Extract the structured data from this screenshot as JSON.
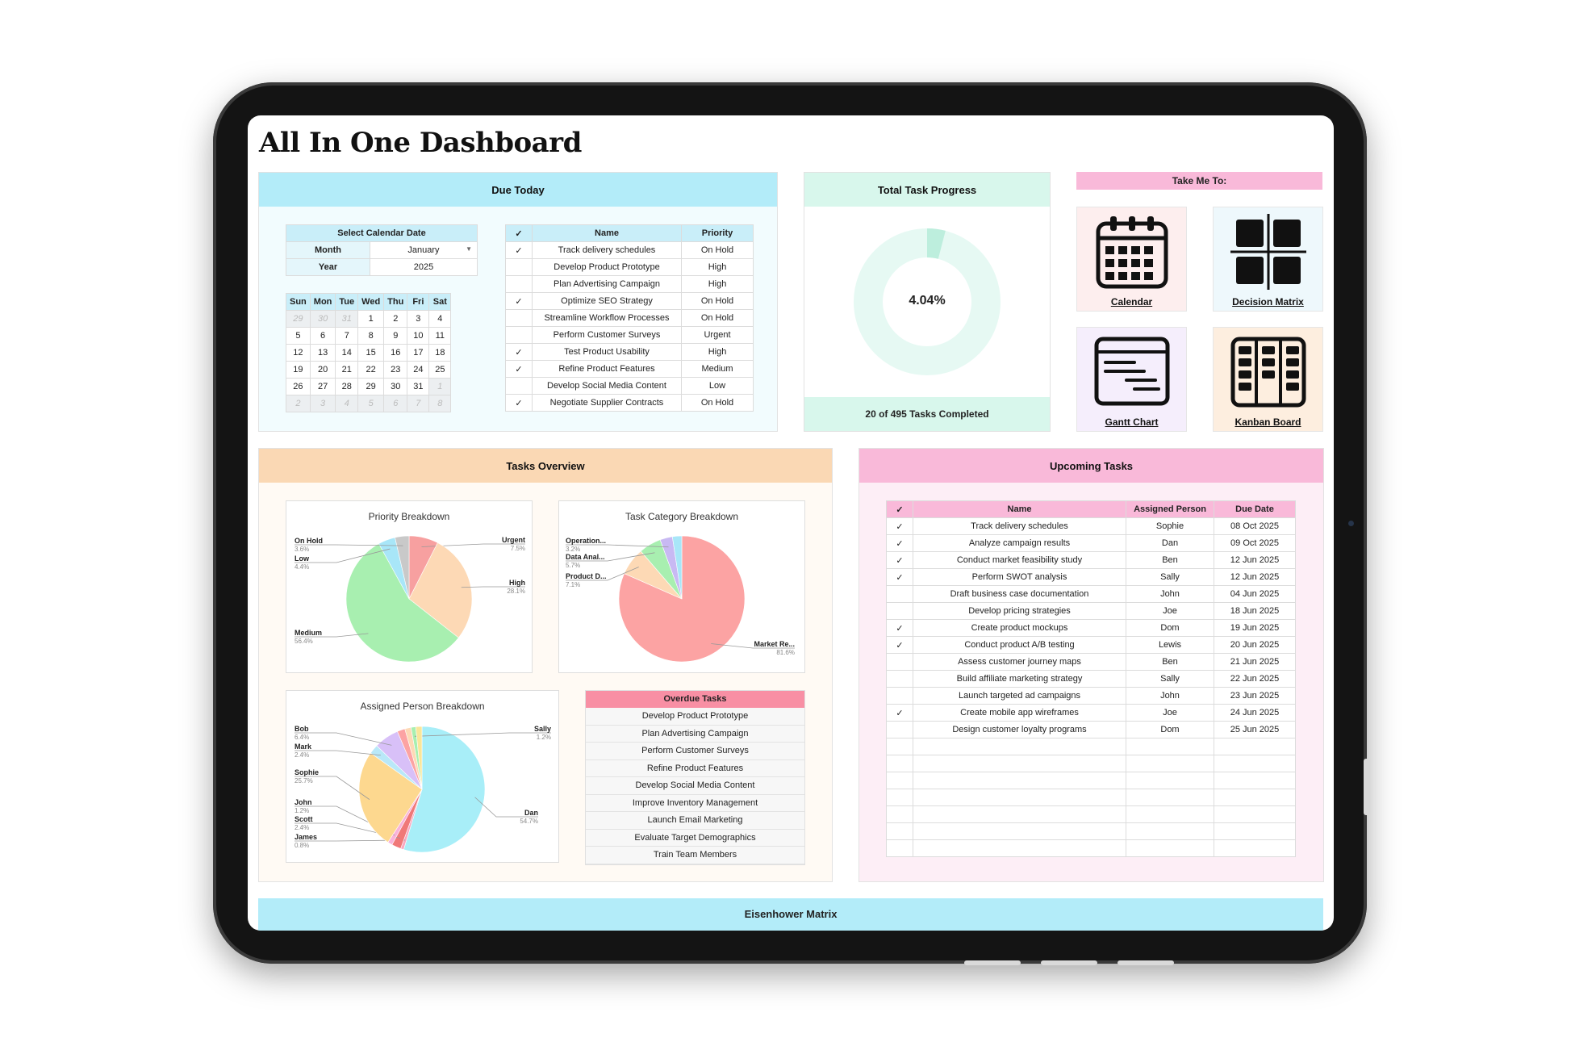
{
  "title": "All In One Dashboard",
  "colors": {
    "due_today_head": "#b3ecf9",
    "progress_head": "#d8f7ec",
    "takeme_head": "#f9b9d9",
    "tasks_overview_head": "#fad8b4",
    "upcoming_head": "#f9b9d9",
    "overdue_head": "#f88fa4",
    "eisenhower_head": "#b3ecf9"
  },
  "due_today": {
    "header": "Due Today",
    "select": {
      "title": "Select Calendar Date",
      "month_label": "Month",
      "month_value": "January",
      "year_label": "Year",
      "year_value": "2025"
    },
    "calendar": {
      "days": [
        "Sun",
        "Mon",
        "Tue",
        "Wed",
        "Thu",
        "Fri",
        "Sat"
      ],
      "weeks": [
        [
          {
            "d": "29",
            "m": true
          },
          {
            "d": "30",
            "m": true
          },
          {
            "d": "31",
            "m": true
          },
          {
            "d": "1"
          },
          {
            "d": "2"
          },
          {
            "d": "3"
          },
          {
            "d": "4"
          }
        ],
        [
          {
            "d": "5"
          },
          {
            "d": "6"
          },
          {
            "d": "7"
          },
          {
            "d": "8"
          },
          {
            "d": "9"
          },
          {
            "d": "10"
          },
          {
            "d": "11"
          }
        ],
        [
          {
            "d": "12"
          },
          {
            "d": "13"
          },
          {
            "d": "14"
          },
          {
            "d": "15"
          },
          {
            "d": "16"
          },
          {
            "d": "17"
          },
          {
            "d": "18"
          }
        ],
        [
          {
            "d": "19"
          },
          {
            "d": "20"
          },
          {
            "d": "21"
          },
          {
            "d": "22"
          },
          {
            "d": "23"
          },
          {
            "d": "24"
          },
          {
            "d": "25"
          }
        ],
        [
          {
            "d": "26"
          },
          {
            "d": "27"
          },
          {
            "d": "28"
          },
          {
            "d": "29"
          },
          {
            "d": "30"
          },
          {
            "d": "31"
          },
          {
            "d": "1",
            "m": true
          }
        ],
        [
          {
            "d": "2",
            "m": true
          },
          {
            "d": "3",
            "m": true
          },
          {
            "d": "4",
            "m": true
          },
          {
            "d": "5",
            "m": true
          },
          {
            "d": "6",
            "m": true
          },
          {
            "d": "7",
            "m": true
          },
          {
            "d": "8",
            "m": true
          }
        ]
      ]
    },
    "table": {
      "headers": [
        "✓",
        "Name",
        "Priority"
      ],
      "rows": [
        {
          "check": "✓",
          "name": "Track delivery schedules",
          "priority": "On Hold"
        },
        {
          "check": "",
          "name": "Develop Product Prototype",
          "priority": "High"
        },
        {
          "check": "",
          "name": "Plan Advertising Campaign",
          "priority": "High"
        },
        {
          "check": "✓",
          "name": "Optimize SEO Strategy",
          "priority": "On Hold"
        },
        {
          "check": "",
          "name": "Streamline Workflow Processes",
          "priority": "On Hold"
        },
        {
          "check": "",
          "name": "Perform Customer Surveys",
          "priority": "Urgent"
        },
        {
          "check": "✓",
          "name": "Test Product Usability",
          "priority": "High"
        },
        {
          "check": "✓",
          "name": "Refine Product Features",
          "priority": "Medium"
        },
        {
          "check": "",
          "name": "Develop Social Media Content",
          "priority": "Low"
        },
        {
          "check": "✓",
          "name": "Negotiate Supplier Contracts",
          "priority": "On Hold"
        }
      ]
    }
  },
  "progress": {
    "header": "Total Task Progress",
    "percent_label": "4.04%",
    "percent": 4.04,
    "footer": "20 of 495 Tasks Completed"
  },
  "take_me": {
    "header": "Take Me To:",
    "cards": [
      {
        "label": "Calendar",
        "icon": "calendar-icon",
        "bg": "#fdeeee"
      },
      {
        "label": "Decision Matrix",
        "icon": "grid-icon",
        "bg": "#eef8fc"
      },
      {
        "label": "Gantt Chart",
        "icon": "gantt-icon",
        "bg": "#f5eefc"
      },
      {
        "label": "Kanban Board",
        "icon": "kanban-icon",
        "bg": "#fdeedf"
      }
    ]
  },
  "tasks_overview": {
    "header": "Tasks Overview",
    "overdue": {
      "header": "Overdue Tasks",
      "items": [
        "Develop Product Prototype",
        "Plan Advertising Campaign",
        "Perform Customer Surveys",
        "Refine Product Features",
        "Develop Social Media Content",
        "Improve Inventory Management",
        "Launch Email Marketing",
        "Evaluate Target Demographics",
        "Train Team Members"
      ]
    }
  },
  "chart_data": [
    {
      "type": "pie",
      "title": "Priority Breakdown",
      "slices": [
        {
          "label": "Urgent",
          "value": 7.5,
          "value_label": "7.5%",
          "color": "#f7a0a0"
        },
        {
          "label": "High",
          "value": 28.1,
          "value_label": "28.1%",
          "color": "#fdd9b5"
        },
        {
          "label": "Medium",
          "value": 56.4,
          "value_label": "56.4%",
          "color": "#a8efb0"
        },
        {
          "label": "Low",
          "value": 4.4,
          "value_label": "4.4%",
          "color": "#a8e6f8"
        },
        {
          "label": "On Hold",
          "value": 3.6,
          "value_label": "3.6%",
          "color": "#c9c9c9"
        }
      ]
    },
    {
      "type": "pie",
      "title": "Task Category Breakdown",
      "slices": [
        {
          "label": "Market Re...",
          "value": 81.6,
          "value_label": "81.6%",
          "color": "#fca3a3"
        },
        {
          "label": "Product D...",
          "value": 7.1,
          "value_label": "7.1%",
          "color": "#fdd9b5"
        },
        {
          "label": "Data Anal...",
          "value": 5.7,
          "value_label": "5.7%",
          "color": "#a8efb0"
        },
        {
          "label": "Operation...",
          "value": 3.2,
          "value_label": "3.2%",
          "color": "#c8b9f3"
        },
        {
          "label": "",
          "value": 2.4,
          "value_label": "",
          "color": "#a8e6f8"
        }
      ]
    },
    {
      "type": "pie",
      "title": "Assigned Person Breakdown",
      "slices": [
        {
          "label": "Dan",
          "value": 54.7,
          "value_label": "54.7%",
          "color": "#a8eef8"
        },
        {
          "label": "James",
          "value": 0.8,
          "value_label": "0.8%",
          "color": "#f8a8c0"
        },
        {
          "label": "Scott",
          "value": 2.4,
          "value_label": "2.4%",
          "color": "#f07878"
        },
        {
          "label": "John",
          "value": 1.2,
          "value_label": "1.2%",
          "color": "#f9b3d9"
        },
        {
          "label": "Sophie",
          "value": 25.7,
          "value_label": "25.7%",
          "color": "#fdd88f"
        },
        {
          "label": "Mark",
          "value": 2.4,
          "value_label": "2.4%",
          "color": "#b9e8f8"
        },
        {
          "label": "Bob",
          "value": 6.4,
          "value_label": "6.4%",
          "color": "#d8c0f8"
        },
        {
          "label": "",
          "value": 2.0,
          "value_label": "",
          "color": "#fca3a3"
        },
        {
          "label": "",
          "value": 1.6,
          "value_label": "",
          "color": "#fdd9b5"
        },
        {
          "label": "Sally",
          "value": 1.2,
          "value_label": "1.2%",
          "color": "#a8efb0"
        },
        {
          "label": "",
          "value": 1.6,
          "value_label": "",
          "color": "#f9e69a"
        }
      ]
    }
  ],
  "upcoming": {
    "header": "Upcoming Tasks",
    "headers": [
      "✓",
      "Name",
      "Assigned Person",
      "Due Date"
    ],
    "rows": [
      {
        "check": "✓",
        "name": "Track delivery schedules",
        "person": "Sophie",
        "date": "08 Oct 2025"
      },
      {
        "check": "✓",
        "name": "Analyze campaign results",
        "person": "Dan",
        "date": "09 Oct 2025"
      },
      {
        "check": "✓",
        "name": "Conduct market feasibility study",
        "person": "Ben",
        "date": "12 Jun 2025"
      },
      {
        "check": "✓",
        "name": "Perform SWOT analysis",
        "person": "Sally",
        "date": "12 Jun 2025"
      },
      {
        "check": "",
        "name": "Draft business case documentation",
        "person": "John",
        "date": "04 Jun 2025"
      },
      {
        "check": "",
        "name": "Develop pricing strategies",
        "person": "Joe",
        "date": "18 Jun 2025"
      },
      {
        "check": "✓",
        "name": "Create product mockups",
        "person": "Dom",
        "date": "19 Jun 2025"
      },
      {
        "check": "✓",
        "name": "Conduct product A/B testing",
        "person": "Lewis",
        "date": "20 Jun 2025"
      },
      {
        "check": "",
        "name": "Assess customer journey maps",
        "person": "Ben",
        "date": "21 Jun 2025"
      },
      {
        "check": "",
        "name": "Build affiliate marketing strategy",
        "person": "Sally",
        "date": "22 Jun 2025"
      },
      {
        "check": "",
        "name": "Launch targeted ad campaigns",
        "person": "John",
        "date": "23 Jun 2025"
      },
      {
        "check": "✓",
        "name": "Create mobile app wireframes",
        "person": "Joe",
        "date": "24 Jun 2025"
      },
      {
        "check": "",
        "name": "Design customer loyalty programs",
        "person": "Dom",
        "date": "25 Jun 2025"
      }
    ],
    "empty_rows": 7
  },
  "eisenhower": {
    "header": "Eisenhower Matrix"
  }
}
